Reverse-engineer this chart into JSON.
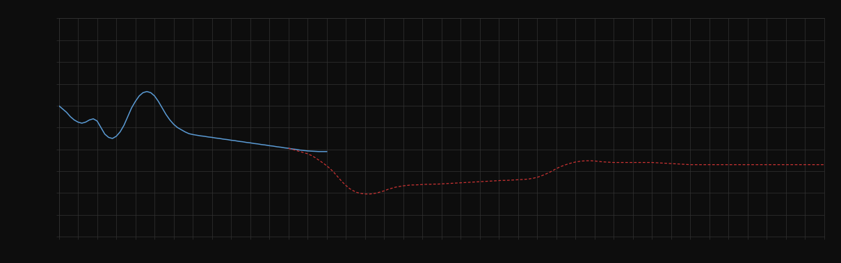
{
  "background_color": "#0d0d0d",
  "plot_bg_color": "#0d0d0d",
  "grid_color": "#333333",
  "figsize": [
    12.09,
    3.78
  ],
  "dpi": 100,
  "xlim": [
    0,
    100
  ],
  "ylim": [
    0,
    10
  ],
  "grid_x_step": 2.5,
  "grid_y_step": 1.0,
  "blue_line_color": "#5b9bd5",
  "red_line_color": "#cc3333",
  "blue_x": [
    0,
    0.5,
    1,
    1.5,
    2,
    2.5,
    3,
    3.5,
    4,
    4.5,
    5,
    5.5,
    6,
    6.5,
    7,
    7.5,
    8,
    8.5,
    9,
    9.5,
    10,
    10.5,
    11,
    11.5,
    12,
    12.5,
    13,
    13.5,
    14,
    14.5,
    15,
    15.5,
    16,
    16.5,
    17,
    17.5,
    18,
    18.5,
    19,
    19.5,
    20,
    20.5,
    21,
    21.5,
    22,
    22.5,
    23,
    23.5,
    24,
    24.5,
    25,
    25.5,
    26,
    26.5,
    27,
    27.5,
    28,
    28.5,
    29,
    29.5,
    30,
    30.5,
    31,
    31.5,
    32,
    32.5,
    33,
    33.5,
    34,
    34.5,
    35
  ],
  "blue_y": [
    6.0,
    5.85,
    5.7,
    5.5,
    5.35,
    5.25,
    5.2,
    5.25,
    5.35,
    5.4,
    5.3,
    5.0,
    4.7,
    4.55,
    4.5,
    4.6,
    4.8,
    5.1,
    5.5,
    5.9,
    6.2,
    6.45,
    6.6,
    6.65,
    6.6,
    6.45,
    6.2,
    5.9,
    5.6,
    5.35,
    5.15,
    5.0,
    4.9,
    4.8,
    4.72,
    4.68,
    4.65,
    4.62,
    4.6,
    4.57,
    4.55,
    4.52,
    4.5,
    4.47,
    4.45,
    4.42,
    4.4,
    4.37,
    4.35,
    4.32,
    4.3,
    4.27,
    4.25,
    4.22,
    4.2,
    4.17,
    4.15,
    4.12,
    4.1,
    4.07,
    4.05,
    4.02,
    4.0,
    3.97,
    3.95,
    3.93,
    3.92,
    3.91,
    3.9,
    3.9,
    3.9
  ],
  "red_x": [
    30,
    30.5,
    31,
    31.5,
    32,
    32.5,
    33,
    33.5,
    34,
    34.5,
    35,
    35.5,
    36,
    36.5,
    37,
    37.5,
    38,
    38.5,
    39,
    39.5,
    40,
    40.5,
    41,
    41.5,
    42,
    42.5,
    43,
    43.5,
    44,
    44.5,
    45,
    45.5,
    46,
    46.5,
    47,
    47.5,
    48,
    48.5,
    49,
    49.5,
    50,
    50.5,
    51,
    51.5,
    52,
    52.5,
    53,
    53.5,
    54,
    54.5,
    55,
    55.5,
    56,
    56.5,
    57,
    57.5,
    58,
    58.5,
    59,
    59.5,
    60,
    60.5,
    61,
    61.5,
    62,
    62.5,
    63,
    63.5,
    64,
    64.5,
    65,
    65.5,
    66,
    66.5,
    67,
    67.5,
    68,
    68.5,
    69,
    69.5,
    70,
    70.5,
    71,
    71.5,
    72,
    72.5,
    73,
    73.5,
    74,
    74.5,
    75,
    75.5,
    76,
    76.5,
    77,
    77.5,
    78,
    78.5,
    79,
    79.5,
    80,
    80.5,
    81,
    81.5,
    82,
    82.5,
    83,
    83.5,
    84,
    84.5,
    85,
    85.5,
    86,
    86.5,
    87,
    87.5,
    88,
    88.5,
    89,
    89.5,
    90,
    90.5,
    91,
    91.5,
    92,
    92.5,
    93,
    93.5,
    94,
    94.5,
    95,
    95.5,
    96,
    96.5,
    97,
    97.5,
    98,
    98.5,
    99,
    99.5,
    100
  ],
  "red_y": [
    4.05,
    4.0,
    3.95,
    3.9,
    3.85,
    3.8,
    3.72,
    3.62,
    3.5,
    3.38,
    3.25,
    3.1,
    2.92,
    2.72,
    2.52,
    2.35,
    2.2,
    2.1,
    2.02,
    1.98,
    1.96,
    1.95,
    1.97,
    2.0,
    2.05,
    2.1,
    2.17,
    2.22,
    2.27,
    2.3,
    2.33,
    2.35,
    2.37,
    2.37,
    2.38,
    2.39,
    2.4,
    2.4,
    2.41,
    2.41,
    2.42,
    2.43,
    2.44,
    2.45,
    2.46,
    2.47,
    2.48,
    2.49,
    2.5,
    2.51,
    2.52,
    2.53,
    2.54,
    2.55,
    2.56,
    2.57,
    2.58,
    2.58,
    2.59,
    2.6,
    2.61,
    2.62,
    2.63,
    2.65,
    2.68,
    2.72,
    2.78,
    2.85,
    2.93,
    3.02,
    3.12,
    3.2,
    3.27,
    3.33,
    3.38,
    3.42,
    3.45,
    3.47,
    3.48,
    3.48,
    3.47,
    3.45,
    3.43,
    3.42,
    3.41,
    3.4,
    3.4,
    3.4,
    3.4,
    3.4,
    3.4,
    3.4,
    3.4,
    3.4,
    3.4,
    3.4,
    3.39,
    3.38,
    3.37,
    3.36,
    3.35,
    3.34,
    3.33,
    3.32,
    3.31,
    3.3,
    3.3,
    3.3,
    3.3,
    3.3,
    3.3,
    3.3,
    3.3,
    3.3,
    3.3,
    3.3,
    3.3,
    3.3,
    3.3,
    3.3,
    3.3,
    3.3,
    3.3,
    3.3,
    3.3,
    3.3,
    3.3,
    3.3,
    3.3,
    3.3,
    3.3,
    3.3,
    3.3,
    3.3,
    3.3,
    3.3,
    3.3,
    3.3,
    3.3,
    3.3,
    3.3
  ]
}
